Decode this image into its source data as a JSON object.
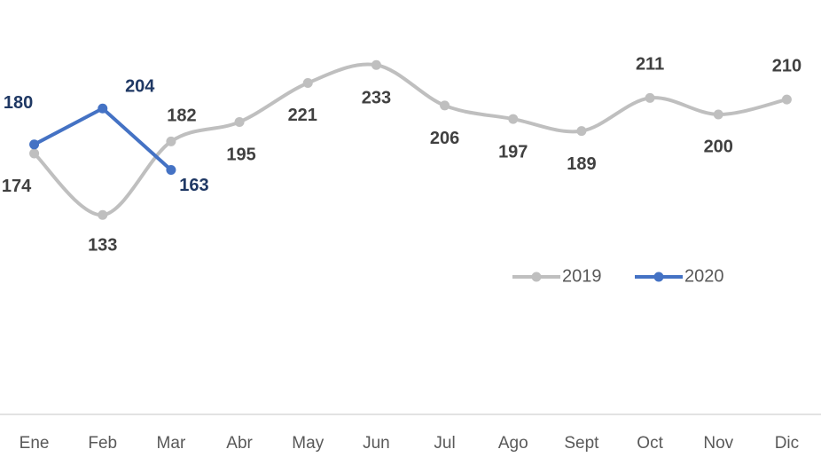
{
  "chart_data": {
    "type": "line",
    "categories": [
      "Ene",
      "Feb",
      "Mar",
      "Abr",
      "May",
      "Jun",
      "Jul",
      "Ago",
      "Sept",
      "Oct",
      "Nov",
      "Dic"
    ],
    "series": [
      {
        "name": "2019",
        "color": "#bfbfbf",
        "label_color": "#404040",
        "smooth": true,
        "values": [
          174,
          133,
          182,
          195,
          221,
          233,
          206,
          197,
          189,
          211,
          200,
          210
        ]
      },
      {
        "name": "2020",
        "color": "#4472c4",
        "label_color": "#1f3864",
        "smooth": false,
        "values": [
          180,
          204,
          163,
          null,
          null,
          null,
          null,
          null,
          null,
          null,
          null,
          null
        ]
      }
    ],
    "ylim": [
      0,
      250
    ],
    "legend": "right"
  }
}
